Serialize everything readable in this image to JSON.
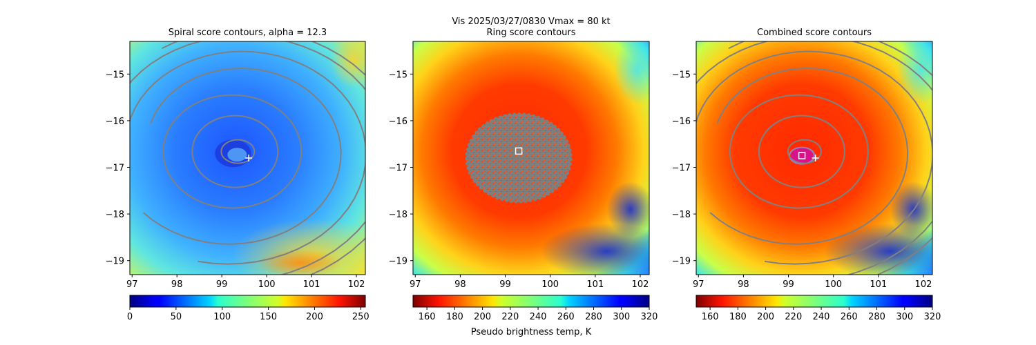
{
  "figure": {
    "suptitle_line1": "Vis  2025/03/27/0830    Vmax = 80 kt",
    "colorbar_label": "Pseudo brightness temp, K"
  },
  "chart_data": [
    {
      "type": "heatmap",
      "title": "Spiral score contours, alpha = 12.3",
      "xlim": [
        96.95,
        102.2
      ],
      "ylim": [
        -19.3,
        -14.3
      ],
      "xticks": [
        97,
        98,
        99,
        100,
        101,
        102
      ],
      "yticks": [
        -15,
        -16,
        -17,
        -18,
        -19
      ],
      "colormap": "jet",
      "scene": "cold",
      "center_marker": {
        "lon": 99.6,
        "lat": -16.8,
        "style": "plus"
      },
      "contours": true,
      "colorbar": {
        "range": [
          0,
          255
        ],
        "ticks": [
          0,
          50,
          100,
          150,
          200,
          250
        ],
        "reversed": false
      }
    },
    {
      "type": "heatmap",
      "title": "Ring score contours",
      "xlim": [
        96.95,
        102.2
      ],
      "ylim": [
        -19.3,
        -14.3
      ],
      "xticks": [
        97,
        98,
        99,
        100,
        101,
        102
      ],
      "yticks": [
        -15,
        -16,
        -17,
        -18,
        -19
      ],
      "colormap": "jet_r",
      "scene": "warm-ring",
      "center_marker": {
        "lon": 99.3,
        "lat": -16.65,
        "style": "square"
      },
      "contours": false,
      "colorbar": {
        "range": [
          150,
          320
        ],
        "ticks": [
          160,
          180,
          200,
          220,
          240,
          260,
          280,
          300,
          320
        ],
        "reversed": true
      }
    },
    {
      "type": "heatmap",
      "title": "Combined score contours",
      "xlim": [
        96.95,
        102.2
      ],
      "ylim": [
        -19.3,
        -14.3
      ],
      "xticks": [
        97,
        98,
        99,
        100,
        101,
        102
      ],
      "yticks": [
        -15,
        -16,
        -17,
        -18,
        -19
      ],
      "colormap": "jet_r",
      "scene": "warm",
      "center_marker": {
        "lon": 99.3,
        "lat": -16.75,
        "style": "square",
        "second": {
          "lon": 99.6,
          "lat": -16.8
        }
      },
      "contours": true,
      "colorbar": {
        "range": [
          150,
          320
        ],
        "ticks": [
          160,
          180,
          200,
          220,
          240,
          260,
          280,
          300,
          320
        ],
        "reversed": true
      }
    }
  ],
  "colors": {
    "contour": "#808080",
    "gray_eye": "#7f7f7f"
  }
}
